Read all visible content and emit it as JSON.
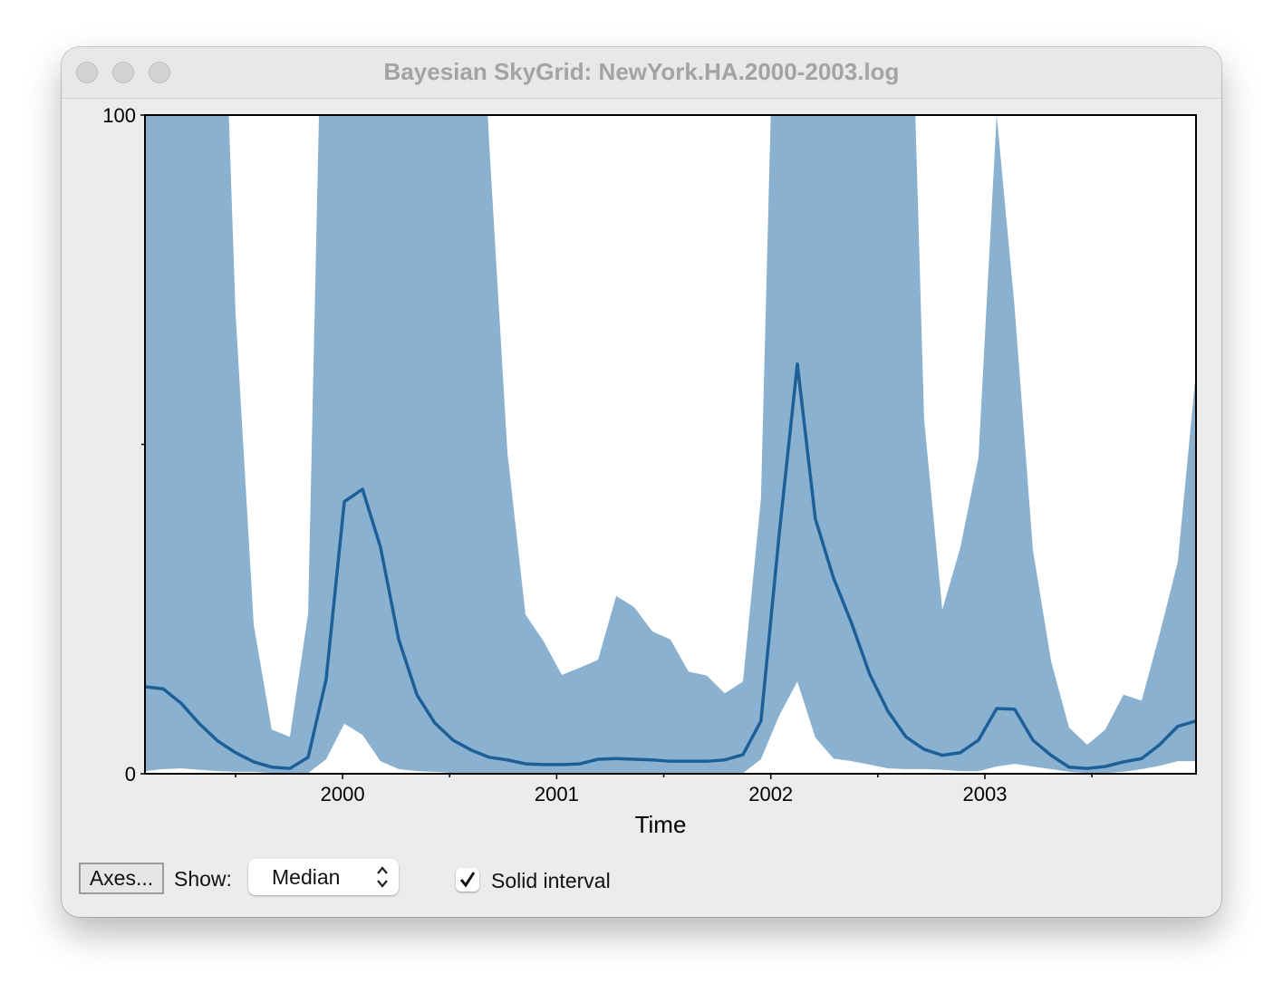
{
  "window": {
    "title": "Bayesian SkyGrid: NewYork.HA.2000-2003.log"
  },
  "chart_data": {
    "type": "line",
    "x": [
      1999.077,
      1999.162,
      1999.246,
      1999.331,
      1999.416,
      1999.5,
      1999.585,
      1999.669,
      1999.754,
      1999.839,
      1999.923,
      2000.008,
      2000.093,
      2000.177,
      2000.262,
      2000.347,
      2000.431,
      2000.516,
      2000.6,
      2000.685,
      2000.77,
      2000.854,
      2000.939,
      2001.024,
      2001.108,
      2001.193,
      2001.278,
      2001.362,
      2001.447,
      2001.531,
      2001.616,
      2001.701,
      2001.785,
      2001.87,
      2001.954,
      2002.039,
      2002.124,
      2002.208,
      2002.293,
      2002.378,
      2002.462,
      2002.547,
      2002.631,
      2002.716,
      2002.801,
      2002.885,
      2002.97,
      2003.055,
      2003.139,
      2003.224,
      2003.309,
      2003.393,
      2003.478,
      2003.562,
      2003.647,
      2003.732,
      2003.816,
      2003.901,
      2003.986
    ],
    "values": [
      13.2,
      12.9,
      10.7,
      7.6,
      5.0,
      3.2,
      1.8,
      1.0,
      0.8,
      2.5,
      14.3,
      41.3,
      43.2,
      34.4,
      20.4,
      12.0,
      7.7,
      5.1,
      3.6,
      2.5,
      2.1,
      1.5,
      1.4,
      1.4,
      1.5,
      2.2,
      2.3,
      2.2,
      2.1,
      1.9,
      1.9,
      1.9,
      2.1,
      2.9,
      8.0,
      36.3,
      62.2,
      38.7,
      29.7,
      22.8,
      15.1,
      9.5,
      5.6,
      3.7,
      2.8,
      3.2,
      5.1,
      9.9,
      9.8,
      5.1,
      2.8,
      1.0,
      0.8,
      1.1,
      1.8,
      2.3,
      4.4,
      7.2,
      8.0
    ],
    "upper": [
      150,
      150,
      150,
      150,
      150,
      70.0,
      22.6,
      6.7,
      5.6,
      24.3,
      150,
      150,
      150,
      150,
      150,
      150,
      150,
      150,
      150,
      95.5,
      48.7,
      24.2,
      20.1,
      15.0,
      16.1,
      17.3,
      27.0,
      25.3,
      21.6,
      20.4,
      15.5,
      14.9,
      12.2,
      14.0,
      41.8,
      150,
      150,
      150,
      150,
      150,
      150,
      150,
      150,
      53.8,
      24.9,
      34.3,
      48.0,
      100,
      70.7,
      34.0,
      17.1,
      7.0,
      4.4,
      6.7,
      12.0,
      11.1,
      21.2,
      32.2,
      61.1
    ],
    "lower": [
      0.4,
      0.7,
      0.8,
      0.6,
      0.4,
      0.3,
      0.3,
      0.1,
      0.1,
      0.1,
      2.2,
      7.6,
      5.9,
      1.9,
      0.7,
      0.4,
      0.3,
      0.1,
      0.1,
      0.1,
      0.1,
      0.1,
      0.1,
      0.1,
      0.1,
      0.1,
      0.1,
      0.1,
      0.1,
      0.1,
      0.1,
      0.1,
      0.1,
      0.1,
      2.2,
      8.8,
      14.0,
      5.5,
      2.3,
      1.9,
      1.4,
      0.8,
      0.7,
      0.7,
      0.6,
      0.4,
      0.4,
      1.1,
      1.5,
      1.1,
      0.7,
      0.3,
      0.1,
      0.1,
      0.3,
      0.7,
      1.2,
      1.9,
      1.9
    ],
    "color": "#1d5f98",
    "interval_color": "#8ab1cf",
    "xlim": [
      1999.077,
      2003.986
    ],
    "xticks": [
      2000,
      2001,
      2002,
      2003
    ],
    "minor_xticks": [
      1999.5,
      2000.5,
      2001.5,
      2002.5,
      2003.5
    ],
    "ylim": [
      0,
      100
    ],
    "yticks": [
      0,
      100
    ],
    "minor_yticks": [
      50
    ],
    "x_label": "Time"
  },
  "controls": {
    "axes_button": "Axes...",
    "show_label": "Show:",
    "show_value": "Median",
    "checkbox_label": "Solid interval",
    "checkbox_checked": true
  }
}
